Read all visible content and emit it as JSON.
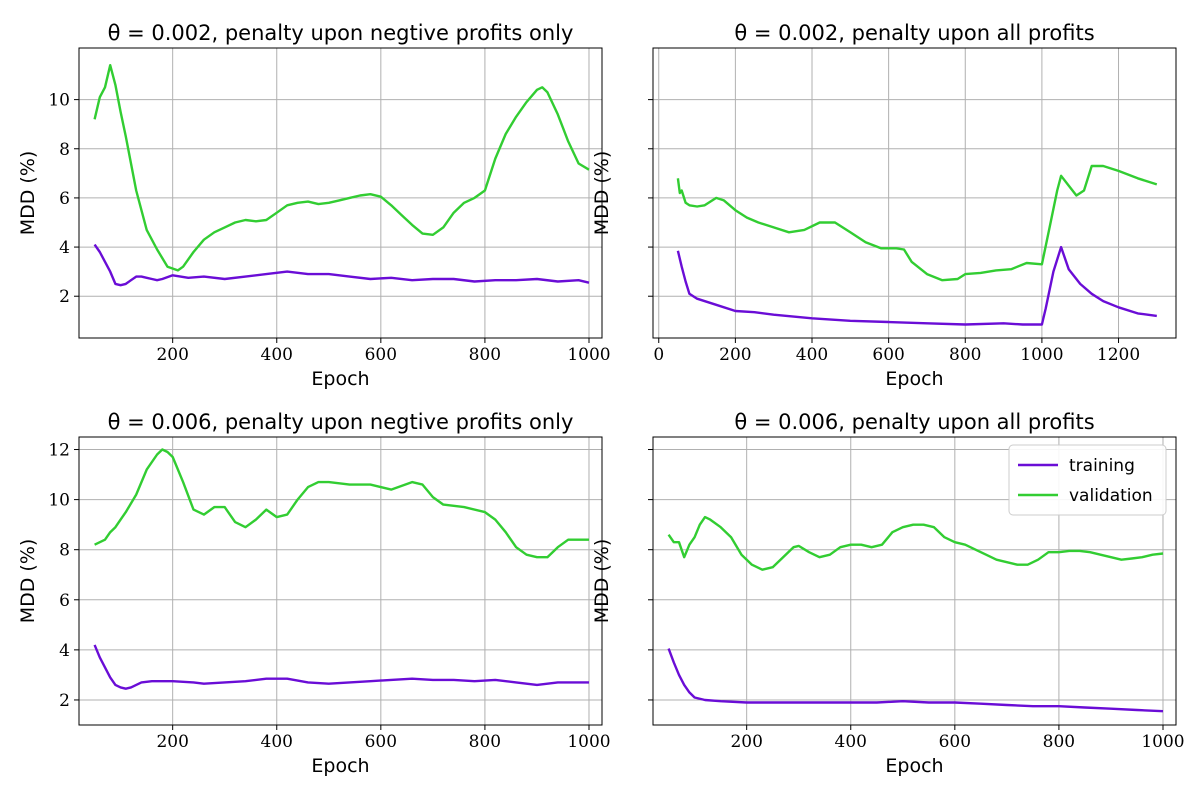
{
  "colors": {
    "training": "#6a0dd6",
    "validation": "#32cd32",
    "grid": "#b0b0b0"
  },
  "legend": {
    "training": "training",
    "validation": "validation",
    "placement": "top-right"
  },
  "chart_data": [
    {
      "type": "line",
      "title": "θ = 0.002, penalty upon negtive profits only",
      "xlabel": "Epoch",
      "ylabel": "MDD (%)",
      "xlim": [
        20,
        1025
      ],
      "ylim": [
        0.3,
        12.1
      ],
      "xticks": [
        200,
        400,
        600,
        800,
        1000
      ],
      "yticks": [
        2,
        4,
        6,
        8,
        10
      ],
      "grid": true,
      "series": [
        {
          "name": "training",
          "color": "#6a0dd6",
          "x": [
            50,
            60,
            70,
            80,
            90,
            100,
            110,
            120,
            130,
            140,
            150,
            160,
            170,
            180,
            200,
            230,
            260,
            300,
            340,
            380,
            420,
            460,
            500,
            540,
            580,
            620,
            660,
            700,
            740,
            780,
            820,
            860,
            900,
            940,
            980,
            1000
          ],
          "y": [
            4.1,
            3.8,
            3.4,
            3.0,
            2.5,
            2.45,
            2.5,
            2.65,
            2.8,
            2.8,
            2.75,
            2.7,
            2.65,
            2.7,
            2.85,
            2.75,
            2.8,
            2.7,
            2.8,
            2.9,
            3.0,
            2.9,
            2.9,
            2.8,
            2.7,
            2.75,
            2.65,
            2.7,
            2.7,
            2.6,
            2.65,
            2.65,
            2.7,
            2.6,
            2.65,
            2.55
          ]
        },
        {
          "name": "validation",
          "color": "#32cd32",
          "x": [
            50,
            60,
            70,
            80,
            90,
            100,
            110,
            130,
            150,
            170,
            190,
            210,
            220,
            240,
            260,
            280,
            300,
            320,
            340,
            360,
            380,
            400,
            420,
            440,
            460,
            480,
            500,
            520,
            540,
            560,
            580,
            600,
            620,
            640,
            660,
            680,
            700,
            720,
            740,
            760,
            780,
            800,
            820,
            840,
            860,
            880,
            900,
            910,
            920,
            940,
            960,
            980,
            1000
          ],
          "y": [
            9.2,
            10.1,
            10.5,
            11.4,
            10.6,
            9.5,
            8.5,
            6.3,
            4.7,
            3.9,
            3.2,
            3.05,
            3.2,
            3.8,
            4.3,
            4.6,
            4.8,
            5.0,
            5.1,
            5.05,
            5.1,
            5.4,
            5.7,
            5.8,
            5.85,
            5.75,
            5.8,
            5.9,
            6.0,
            6.1,
            6.15,
            6.05,
            5.7,
            5.3,
            4.9,
            4.55,
            4.5,
            4.8,
            5.4,
            5.8,
            6.0,
            6.3,
            7.6,
            8.6,
            9.3,
            9.9,
            10.4,
            10.5,
            10.3,
            9.4,
            8.3,
            7.4,
            7.15
          ]
        }
      ]
    },
    {
      "type": "line",
      "title": "θ = 0.002, penalty upon all profits",
      "xlabel": "Epoch",
      "ylabel": "MDD (%)",
      "xlim": [
        -15,
        1350
      ],
      "ylim": [
        0.3,
        12.1
      ],
      "xticks": [
        0,
        200,
        400,
        600,
        800,
        1000,
        1200
      ],
      "yticks": [
        2,
        4,
        6,
        8,
        10
      ],
      "showYTickLabels": false,
      "grid": true,
      "series": [
        {
          "name": "training",
          "color": "#6a0dd6",
          "x": [
            50,
            60,
            70,
            80,
            100,
            150,
            200,
            250,
            300,
            400,
            500,
            600,
            700,
            800,
            900,
            950,
            1000,
            1010,
            1030,
            1050,
            1070,
            1100,
            1130,
            1160,
            1200,
            1250,
            1300
          ],
          "y": [
            3.85,
            3.2,
            2.6,
            2.1,
            1.9,
            1.65,
            1.4,
            1.35,
            1.25,
            1.1,
            1.0,
            0.95,
            0.9,
            0.85,
            0.9,
            0.85,
            0.85,
            1.5,
            3.0,
            4.0,
            3.1,
            2.5,
            2.1,
            1.8,
            1.55,
            1.3,
            1.2
          ]
        },
        {
          "name": "validation",
          "color": "#32cd32",
          "x": [
            50,
            55,
            60,
            70,
            80,
            100,
            120,
            150,
            170,
            200,
            230,
            260,
            300,
            340,
            380,
            420,
            460,
            500,
            540,
            580,
            620,
            640,
            660,
            700,
            740,
            780,
            800,
            840,
            880,
            920,
            960,
            1000,
            1020,
            1040,
            1050,
            1070,
            1090,
            1110,
            1130,
            1160,
            1200,
            1250,
            1300
          ],
          "y": [
            6.8,
            6.2,
            6.3,
            5.8,
            5.7,
            5.65,
            5.7,
            6.0,
            5.9,
            5.5,
            5.2,
            5.0,
            4.8,
            4.6,
            4.7,
            5.0,
            5.0,
            4.6,
            4.2,
            3.95,
            3.95,
            3.9,
            3.4,
            2.9,
            2.65,
            2.7,
            2.9,
            2.95,
            3.05,
            3.1,
            3.35,
            3.3,
            4.8,
            6.3,
            6.9,
            6.5,
            6.1,
            6.3,
            7.3,
            7.3,
            7.1,
            6.8,
            6.55
          ]
        }
      ]
    },
    {
      "type": "line",
      "title": "θ = 0.006, penalty upon negtive profits only",
      "xlabel": "Epoch",
      "ylabel": "MDD (%)",
      "xlim": [
        20,
        1025
      ],
      "ylim": [
        1.0,
        12.5
      ],
      "xticks": [
        200,
        400,
        600,
        800,
        1000
      ],
      "yticks": [
        2,
        4,
        6,
        8,
        10,
        12
      ],
      "grid": true,
      "series": [
        {
          "name": "training",
          "color": "#6a0dd6",
          "x": [
            50,
            60,
            70,
            80,
            90,
            100,
            110,
            120,
            140,
            160,
            200,
            240,
            260,
            300,
            340,
            380,
            420,
            460,
            500,
            540,
            580,
            620,
            660,
            700,
            740,
            780,
            820,
            860,
            900,
            940,
            980,
            1000
          ],
          "y": [
            4.2,
            3.7,
            3.3,
            2.9,
            2.6,
            2.5,
            2.45,
            2.5,
            2.7,
            2.75,
            2.75,
            2.7,
            2.65,
            2.7,
            2.75,
            2.85,
            2.85,
            2.7,
            2.65,
            2.7,
            2.75,
            2.8,
            2.85,
            2.8,
            2.8,
            2.75,
            2.8,
            2.7,
            2.6,
            2.7,
            2.7,
            2.7
          ]
        },
        {
          "name": "validation",
          "color": "#32cd32",
          "x": [
            50,
            60,
            70,
            80,
            90,
            100,
            110,
            130,
            150,
            170,
            180,
            190,
            200,
            220,
            240,
            260,
            280,
            300,
            320,
            340,
            360,
            380,
            400,
            420,
            440,
            460,
            480,
            500,
            540,
            580,
            620,
            660,
            680,
            700,
            720,
            760,
            800,
            820,
            840,
            860,
            880,
            900,
            920,
            940,
            960,
            980,
            1000
          ],
          "y": [
            8.2,
            8.3,
            8.4,
            8.7,
            8.9,
            9.2,
            9.5,
            10.2,
            11.2,
            11.8,
            12.0,
            11.9,
            11.7,
            10.7,
            9.6,
            9.4,
            9.7,
            9.7,
            9.1,
            8.9,
            9.2,
            9.6,
            9.3,
            9.4,
            10.0,
            10.5,
            10.7,
            10.7,
            10.6,
            10.6,
            10.4,
            10.7,
            10.6,
            10.1,
            9.8,
            9.7,
            9.5,
            9.2,
            8.7,
            8.1,
            7.8,
            7.7,
            7.7,
            8.1,
            8.4,
            8.4,
            8.4
          ]
        }
      ]
    },
    {
      "type": "line",
      "title": "θ = 0.006, penalty upon all profits",
      "xlabel": "Epoch",
      "ylabel": "MDD (%)",
      "xlim": [
        20,
        1025
      ],
      "ylim": [
        1.0,
        12.5
      ],
      "xticks": [
        200,
        400,
        600,
        800,
        1000
      ],
      "yticks": [
        2,
        4,
        6,
        8,
        10,
        12
      ],
      "showYTickLabels": false,
      "showLegend": true,
      "grid": true,
      "series": [
        {
          "name": "training",
          "color": "#6a0dd6",
          "x": [
            50,
            60,
            70,
            80,
            90,
            100,
            120,
            150,
            200,
            250,
            300,
            400,
            450,
            500,
            550,
            600,
            650,
            700,
            750,
            800,
            850,
            900,
            950,
            1000
          ],
          "y": [
            4.05,
            3.5,
            3.0,
            2.6,
            2.3,
            2.1,
            2.0,
            1.95,
            1.9,
            1.9,
            1.9,
            1.9,
            1.9,
            1.95,
            1.9,
            1.9,
            1.85,
            1.8,
            1.75,
            1.75,
            1.7,
            1.65,
            1.6,
            1.55
          ]
        },
        {
          "name": "validation",
          "color": "#32cd32",
          "x": [
            50,
            60,
            70,
            80,
            90,
            100,
            110,
            120,
            130,
            150,
            170,
            190,
            210,
            230,
            250,
            270,
            290,
            300,
            320,
            340,
            360,
            380,
            400,
            420,
            440,
            460,
            480,
            500,
            520,
            540,
            560,
            580,
            600,
            620,
            640,
            660,
            680,
            700,
            720,
            740,
            760,
            780,
            800,
            820,
            840,
            860,
            880,
            900,
            920,
            940,
            960,
            980,
            1000
          ],
          "y": [
            8.6,
            8.3,
            8.3,
            7.7,
            8.2,
            8.5,
            9.0,
            9.3,
            9.2,
            8.9,
            8.5,
            7.8,
            7.4,
            7.2,
            7.3,
            7.7,
            8.1,
            8.15,
            7.9,
            7.7,
            7.8,
            8.1,
            8.2,
            8.2,
            8.1,
            8.2,
            8.7,
            8.9,
            9.0,
            9.0,
            8.9,
            8.5,
            8.3,
            8.2,
            8.0,
            7.8,
            7.6,
            7.5,
            7.4,
            7.4,
            7.6,
            7.9,
            7.9,
            7.95,
            7.95,
            7.9,
            7.8,
            7.7,
            7.6,
            7.65,
            7.7,
            7.8,
            7.85
          ]
        }
      ]
    }
  ]
}
